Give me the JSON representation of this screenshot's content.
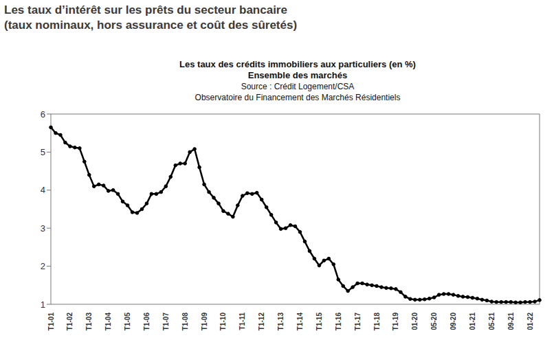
{
  "heading": [
    "Les taux d’intérêt sur les prêts du secteur bancaire",
    "(taux nominaux, hors assurance et coût des sûretés)"
  ],
  "chart_data": {
    "type": "line",
    "title": "Les taux des crédits immobiliers aux particuliers (en %)",
    "subtitle": "Ensemble des marchés",
    "source": "Source : Crédit Logement/CSA",
    "source_detail": "Observatoire du Financement des Marchés Résidentiels",
    "categories": [
      "T1-01",
      null,
      null,
      null,
      "T1-02",
      null,
      null,
      null,
      "T1-03",
      null,
      null,
      null,
      "T1-04",
      null,
      null,
      null,
      "T1-05",
      null,
      null,
      null,
      "T1-06",
      null,
      null,
      null,
      "T1-07",
      null,
      null,
      null,
      "T1-08",
      null,
      null,
      null,
      "T1-09",
      null,
      null,
      null,
      "T1-10",
      null,
      null,
      null,
      "T1-11",
      null,
      null,
      null,
      "T1-12",
      null,
      null,
      null,
      "T1-13",
      null,
      null,
      null,
      "T1-14",
      null,
      null,
      null,
      "T1-15",
      null,
      null,
      null,
      "T1-16",
      null,
      null,
      null,
      "T1-17",
      null,
      null,
      null,
      "T1-18",
      null,
      null,
      null,
      "T1-19",
      null,
      null,
      null,
      "01-20",
      null,
      null,
      null,
      "05-20",
      null,
      null,
      null,
      "09-20",
      null,
      null,
      null,
      "01-21",
      null,
      null,
      null,
      "05-21",
      null,
      null,
      null,
      "09-21",
      null,
      null,
      null,
      "01-22",
      null,
      null
    ],
    "series": [
      {
        "name": "Ensemble des marchés",
        "color": "#000000",
        "marker": "circle",
        "line_style": "solid",
        "values": [
          5.65,
          5.5,
          5.45,
          5.25,
          5.15,
          5.12,
          5.1,
          4.75,
          4.4,
          4.1,
          4.15,
          4.12,
          3.98,
          4.0,
          3.9,
          3.7,
          3.6,
          3.42,
          3.4,
          3.5,
          3.65,
          3.9,
          3.9,
          3.95,
          4.1,
          4.35,
          4.65,
          4.7,
          4.7,
          5.0,
          5.08,
          4.6,
          4.15,
          3.95,
          3.8,
          3.65,
          3.45,
          3.38,
          3.3,
          3.6,
          3.85,
          3.92,
          3.9,
          3.93,
          3.75,
          3.55,
          3.35,
          3.15,
          2.98,
          3.0,
          3.08,
          3.05,
          2.9,
          2.65,
          2.4,
          2.2,
          2.02,
          2.15,
          2.2,
          2.05,
          1.65,
          1.48,
          1.35,
          1.45,
          1.55,
          1.55,
          1.52,
          1.5,
          1.48,
          1.45,
          1.43,
          1.42,
          1.4,
          1.32,
          1.2,
          1.14,
          1.12,
          1.12,
          1.13,
          1.15,
          1.18,
          1.25,
          1.27,
          1.27,
          1.25,
          1.22,
          1.2,
          1.19,
          1.17,
          1.15,
          1.12,
          1.1,
          1.07,
          1.06,
          1.06,
          1.06,
          1.06,
          1.05,
          1.05,
          1.06,
          1.06,
          1.07,
          1.11
        ]
      }
    ],
    "ylim": [
      1,
      6
    ],
    "yticks": [
      1,
      2,
      3,
      4,
      5,
      6
    ],
    "grid": false
  }
}
